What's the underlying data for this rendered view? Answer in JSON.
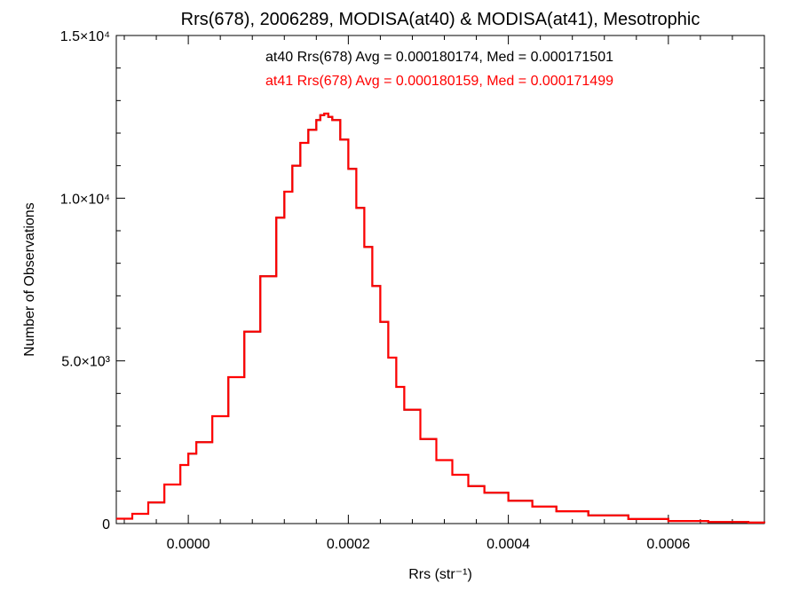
{
  "chart_data": {
    "type": "line",
    "title": "Rrs(678), 2006289, MODISA(at40) & MODISA(at41), Mesotrophic",
    "xlabel": "Rrs (str⁻¹)",
    "ylabel": "Number of Observations",
    "xlim": [
      -9e-05,
      0.00072
    ],
    "ylim": [
      0,
      15000
    ],
    "xticks": [
      {
        "value": 0.0,
        "label": "0.0000"
      },
      {
        "value": 0.0002,
        "label": "0.0002"
      },
      {
        "value": 0.0004,
        "label": "0.0004"
      },
      {
        "value": 0.0006,
        "label": "0.0006"
      }
    ],
    "yticks": [
      {
        "value": 0,
        "label": "0"
      },
      {
        "value": 5000,
        "label": "5.0×10³"
      },
      {
        "value": 10000,
        "label": "1.0×10⁴"
      },
      {
        "value": 15000,
        "label": "1.5×10⁴"
      }
    ],
    "grid": false,
    "annotations": [
      {
        "text": "at40 Rrs(678) Avg = 0.000180174, Med = 0.000171501",
        "color": "#000000"
      },
      {
        "text": "at41 Rrs(678) Avg = 0.000180159, Med = 0.000171499",
        "color": "#ff0000"
      }
    ],
    "series": [
      {
        "color": "#000000",
        "x": [
          -9e-05,
          -7e-05,
          -5e-05,
          -3e-05,
          -1e-05,
          0.0,
          1e-05,
          3e-05,
          5e-05,
          7e-05,
          9e-05,
          0.00011,
          0.00012,
          0.00013,
          0.00014,
          0.00015,
          0.00016,
          0.000165,
          0.00017,
          0.000175,
          0.00018,
          0.00019,
          0.0002,
          0.00021,
          0.00022,
          0.00023,
          0.00024,
          0.00025,
          0.00026,
          0.00027,
          0.00029,
          0.00031,
          0.00033,
          0.00035,
          0.00037,
          0.0004,
          0.00043,
          0.00046,
          0.0005,
          0.00055,
          0.0006,
          0.00065,
          0.0007,
          0.00072
        ],
        "y": [
          150,
          300,
          650,
          1200,
          1800,
          2150,
          2500,
          3300,
          4500,
          5900,
          7600,
          9400,
          10200,
          11000,
          11700,
          12100,
          12400,
          12550,
          12600,
          12500,
          12400,
          11800,
          10900,
          9700,
          8500,
          7300,
          6200,
          5100,
          4200,
          3500,
          2600,
          1950,
          1500,
          1150,
          950,
          700,
          520,
          380,
          250,
          140,
          80,
          50,
          30,
          20
        ]
      },
      {
        "color": "#ff0000",
        "x": [
          -9e-05,
          -7e-05,
          -5e-05,
          -3e-05,
          -1e-05,
          0.0,
          1e-05,
          3e-05,
          5e-05,
          7e-05,
          9e-05,
          0.00011,
          0.00012,
          0.00013,
          0.00014,
          0.00015,
          0.00016,
          0.000165,
          0.00017,
          0.000175,
          0.00018,
          0.00019,
          0.0002,
          0.00021,
          0.00022,
          0.00023,
          0.00024,
          0.00025,
          0.00026,
          0.00027,
          0.00029,
          0.00031,
          0.00033,
          0.00035,
          0.00037,
          0.0004,
          0.00043,
          0.00046,
          0.0005,
          0.00055,
          0.0006,
          0.00065,
          0.0007,
          0.00072
        ],
        "y": [
          150,
          300,
          650,
          1200,
          1800,
          2150,
          2500,
          3300,
          4500,
          5900,
          7600,
          9400,
          10200,
          11000,
          11700,
          12100,
          12400,
          12550,
          12600,
          12500,
          12400,
          11800,
          10900,
          9700,
          8500,
          7300,
          6200,
          5100,
          4200,
          3500,
          2600,
          1950,
          1500,
          1150,
          950,
          700,
          520,
          380,
          250,
          140,
          80,
          50,
          30,
          20
        ]
      }
    ]
  }
}
